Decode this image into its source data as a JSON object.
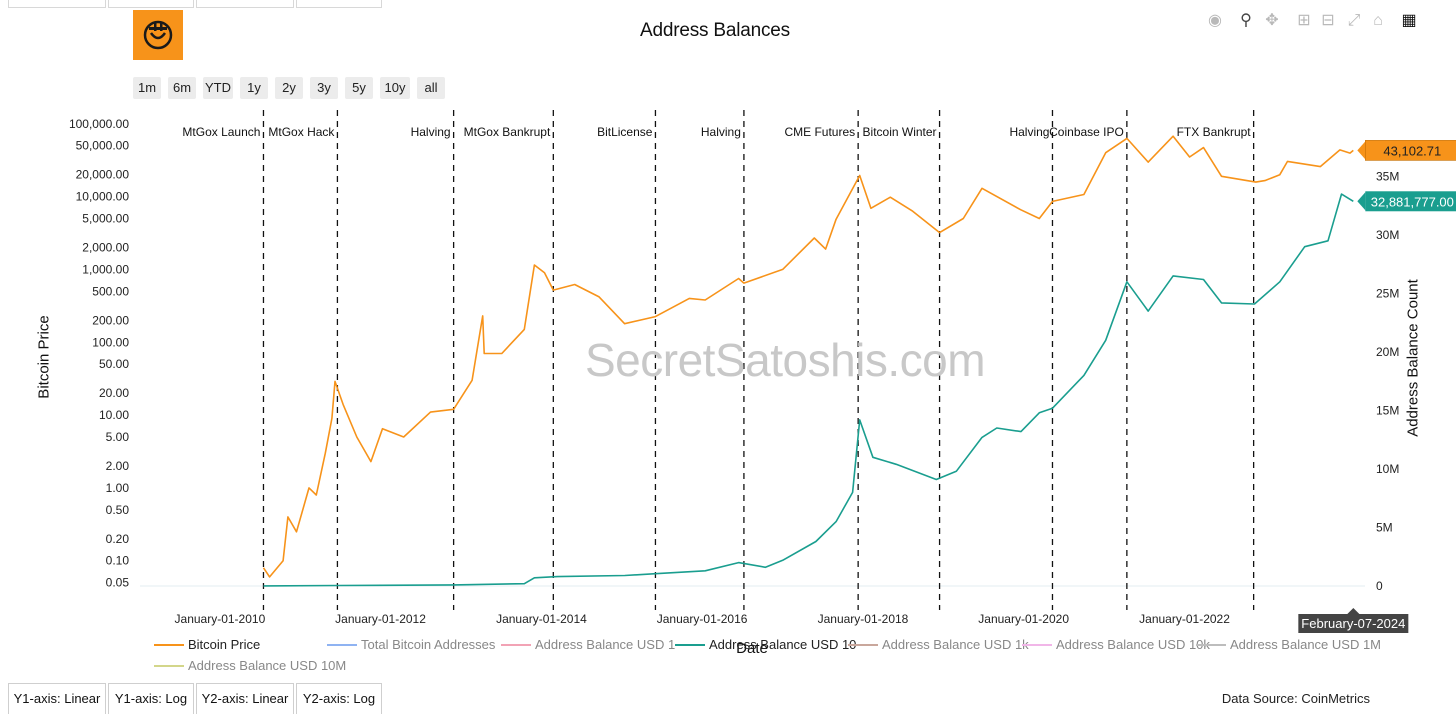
{
  "title": "Address Balances",
  "range_buttons": [
    "1m",
    "6m",
    "YTD",
    "1y",
    "2y",
    "3y",
    "5y",
    "10y",
    "all"
  ],
  "watermark": "SecretSatoshis.com",
  "axis_tabs": [
    "Y1-axis: Linear",
    "Y1-axis: Log",
    "Y2-axis: Linear",
    "Y2-axis: Log"
  ],
  "source": "Data Source: CoinMetrics",
  "colors": {
    "price": "#f7931a",
    "balance": "#1a9e8f",
    "logo_bg": "#f7931a"
  },
  "chart_data": {
    "type": "line",
    "xlabel": "Date",
    "y1label": "Bitcoin Price",
    "y2label": "Address Balance Count",
    "y1_scale": "log",
    "y2_scale": "linear",
    "y1_ticks": [
      {
        "v": 100000,
        "label": "100,000.00"
      },
      {
        "v": 50000,
        "label": "50,000.00"
      },
      {
        "v": 20000,
        "label": "20,000.00"
      },
      {
        "v": 10000,
        "label": "10,000.00"
      },
      {
        "v": 5000,
        "label": "5,000.00"
      },
      {
        "v": 2000,
        "label": "2,000.00"
      },
      {
        "v": 1000,
        "label": "1,000.00"
      },
      {
        "v": 500,
        "label": "500.00"
      },
      {
        "v": 200,
        "label": "200.00"
      },
      {
        "v": 100,
        "label": "100.00"
      },
      {
        "v": 50,
        "label": "50.00"
      },
      {
        "v": 20,
        "label": "20.00"
      },
      {
        "v": 10,
        "label": "10.00"
      },
      {
        "v": 5,
        "label": "5.00"
      },
      {
        "v": 2,
        "label": "2.00"
      },
      {
        "v": 1,
        "label": "1.00"
      },
      {
        "v": 0.5,
        "label": "0.50"
      },
      {
        "v": 0.2,
        "label": "0.20"
      },
      {
        "v": 0.1,
        "label": "0.10"
      },
      {
        "v": 0.05,
        "label": "0.05"
      }
    ],
    "y2_ticks": [
      {
        "v": 0,
        "label": "0"
      },
      {
        "v": 5000000,
        "label": "5M"
      },
      {
        "v": 10000000,
        "label": "10M"
      },
      {
        "v": 15000000,
        "label": "15M"
      },
      {
        "v": 20000000,
        "label": "20M"
      },
      {
        "v": 25000000,
        "label": "25M"
      },
      {
        "v": 30000000,
        "label": "30M"
      },
      {
        "v": 35000000,
        "label": "35M"
      }
    ],
    "x_ticks": [
      "January-01-2010",
      "January-01-2012",
      "January-01-2014",
      "January-01-2016",
      "January-01-2018",
      "January-01-2020",
      "January-01-2022"
    ],
    "x_range": [
      "2009-01-03",
      "2024-03-31"
    ],
    "events": [
      {
        "date": "2010-07-18",
        "label": "MtGox Launch"
      },
      {
        "date": "2011-06-19",
        "label": "MtGox Hack"
      },
      {
        "date": "2012-11-28",
        "label": "Halving"
      },
      {
        "date": "2014-02-24",
        "label": "MtGox Bankrupt"
      },
      {
        "date": "2015-06-03",
        "label": "BitLicense"
      },
      {
        "date": "2016-07-09",
        "label": "Halving"
      },
      {
        "date": "2017-12-10",
        "label": "CME Futures"
      },
      {
        "date": "2018-12-15",
        "label": "Bitcoin Winter"
      },
      {
        "date": "2020-05-11",
        "label": "Halving"
      },
      {
        "date": "2021-04-14",
        "label": "Coinbase IPO"
      },
      {
        "date": "2022-11-11",
        "label": "FTX Bankrupt"
      }
    ],
    "hover_date": "February-07-2024",
    "series": [
      {
        "name": "Bitcoin Price",
        "axis": "y1",
        "last_label": "43,102.71",
        "points": [
          [
            "2010-07-18",
            0.08
          ],
          [
            "2010-08-15",
            0.06
          ],
          [
            "2010-10-15",
            0.1
          ],
          [
            "2010-11-06",
            0.4
          ],
          [
            "2010-12-15",
            0.25
          ],
          [
            "2011-02-10",
            1.0
          ],
          [
            "2011-03-15",
            0.8
          ],
          [
            "2011-04-25",
            3.0
          ],
          [
            "2011-05-25",
            9.0
          ],
          [
            "2011-06-08",
            29
          ],
          [
            "2011-07-15",
            14
          ],
          [
            "2011-09-15",
            5
          ],
          [
            "2011-11-18",
            2.3
          ],
          [
            "2012-01-10",
            6.5
          ],
          [
            "2012-04-15",
            5
          ],
          [
            "2012-08-15",
            11
          ],
          [
            "2012-11-28",
            12
          ],
          [
            "2013-02-20",
            30
          ],
          [
            "2013-04-09",
            230
          ],
          [
            "2013-04-16",
            70
          ],
          [
            "2013-07-05",
            70
          ],
          [
            "2013-10-15",
            150
          ],
          [
            "2013-11-30",
            1150
          ],
          [
            "2014-01-15",
            900
          ],
          [
            "2014-02-24",
            520
          ],
          [
            "2014-06-01",
            620
          ],
          [
            "2014-09-20",
            420
          ],
          [
            "2015-01-14",
            180
          ],
          [
            "2015-06-03",
            225
          ],
          [
            "2015-11-04",
            400
          ],
          [
            "2016-01-15",
            380
          ],
          [
            "2016-06-15",
            750
          ],
          [
            "2016-07-09",
            650
          ],
          [
            "2017-01-01",
            1000
          ],
          [
            "2017-05-25",
            2700
          ],
          [
            "2017-07-15",
            1900
          ],
          [
            "2017-09-01",
            4900
          ],
          [
            "2017-12-17",
            19500
          ],
          [
            "2018-02-06",
            6900
          ],
          [
            "2018-05-05",
            9800
          ],
          [
            "2018-08-15",
            6300
          ],
          [
            "2018-12-15",
            3200
          ],
          [
            "2019-04-02",
            5000
          ],
          [
            "2019-06-26",
            13000
          ],
          [
            "2019-12-18",
            6600
          ],
          [
            "2020-03-12",
            5000
          ],
          [
            "2020-05-11",
            8600
          ],
          [
            "2020-10-01",
            10700
          ],
          [
            "2021-01-08",
            40000
          ],
          [
            "2021-04-14",
            63000
          ],
          [
            "2021-07-20",
            29800
          ],
          [
            "2021-11-10",
            67500
          ],
          [
            "2022-01-24",
            35000
          ],
          [
            "2022-03-28",
            47000
          ],
          [
            "2022-06-18",
            19000
          ],
          [
            "2022-11-21",
            15800
          ],
          [
            "2023-01-01",
            16600
          ],
          [
            "2023-03-10",
            20000
          ],
          [
            "2023-04-14",
            30400
          ],
          [
            "2023-09-10",
            25800
          ],
          [
            "2023-12-08",
            43800
          ],
          [
            "2024-01-23",
            39500
          ],
          [
            "2024-02-07",
            43102.71
          ]
        ]
      },
      {
        "name": "Total Bitcoin Addresses",
        "axis": "y2",
        "points": []
      },
      {
        "name": "Address Balance USD 1",
        "axis": "y2",
        "points": []
      },
      {
        "name": "Address Balance USD 10",
        "axis": "y2",
        "last_label": "32,881,777.00",
        "points": [
          [
            "2010-07-18",
            5000
          ],
          [
            "2011-06-19",
            40000
          ],
          [
            "2012-11-28",
            90000
          ],
          [
            "2013-10-15",
            200000
          ],
          [
            "2013-11-30",
            700000
          ],
          [
            "2014-03-15",
            800000
          ],
          [
            "2015-01-15",
            900000
          ],
          [
            "2015-06-03",
            1050000
          ],
          [
            "2016-01-15",
            1300000
          ],
          [
            "2016-06-15",
            2000000
          ],
          [
            "2016-10-15",
            1600000
          ],
          [
            "2017-01-01",
            2200000
          ],
          [
            "2017-06-01",
            3800000
          ],
          [
            "2017-09-01",
            5500000
          ],
          [
            "2017-11-15",
            8000000
          ],
          [
            "2017-12-17",
            14200000
          ],
          [
            "2018-02-15",
            11000000
          ],
          [
            "2018-06-01",
            10400000
          ],
          [
            "2018-11-30",
            9100000
          ],
          [
            "2019-03-01",
            9800000
          ],
          [
            "2019-06-26",
            12700000
          ],
          [
            "2019-09-01",
            13500000
          ],
          [
            "2019-12-20",
            13200000
          ],
          [
            "2020-03-12",
            14800000
          ],
          [
            "2020-05-11",
            15200000
          ],
          [
            "2020-10-01",
            18000000
          ],
          [
            "2021-01-08",
            21000000
          ],
          [
            "2021-04-14",
            26000000
          ],
          [
            "2021-07-20",
            23500000
          ],
          [
            "2021-11-10",
            26500000
          ],
          [
            "2022-03-28",
            26200000
          ],
          [
            "2022-06-18",
            24200000
          ],
          [
            "2022-11-15",
            24100000
          ],
          [
            "2023-03-10",
            26000000
          ],
          [
            "2023-07-01",
            29000000
          ],
          [
            "2023-10-15",
            29500000
          ],
          [
            "2023-12-15",
            33500000
          ],
          [
            "2024-02-07",
            32881777
          ]
        ]
      },
      {
        "name": "Address Balance USD 1k",
        "axis": "y2",
        "points": []
      },
      {
        "name": "Address Balance USD 10k",
        "axis": "y2",
        "points": []
      },
      {
        "name": "Address Balance USD 1M",
        "axis": "y2",
        "points": []
      },
      {
        "name": "Address Balance USD 10M",
        "axis": "y2",
        "points": []
      }
    ]
  },
  "legend": [
    {
      "label": "Bitcoin Price",
      "color": "#f7931a"
    },
    {
      "label": "Total Bitcoin Addresses",
      "color": "#8fb3f2"
    },
    {
      "label": "Address Balance USD 1",
      "color": "#f2a3b5"
    },
    {
      "label": "Address Balance USD 10",
      "color": "#1a9e8f"
    },
    {
      "label": "Address Balance USD 1k",
      "color": "#c9a79c"
    },
    {
      "label": "Address Balance USD 10k",
      "color": "#f1b6e8"
    },
    {
      "label": "Address Balance USD 1M",
      "color": "#bdbdbd"
    },
    {
      "label": "Address Balance USD 10M",
      "color": "#d3d68a"
    }
  ]
}
